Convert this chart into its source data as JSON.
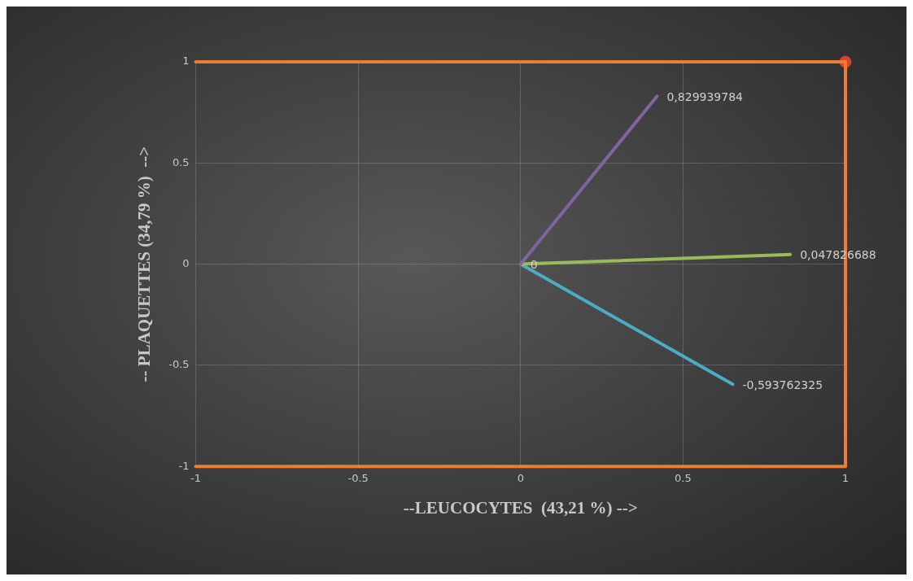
{
  "chart_data": {
    "type": "line",
    "xlabel": "--LEUCOCYTES  (43,21 %) -->",
    "ylabel": "-- PLAQUETTES (34,79 %)  -->",
    "xlim": [
      -1,
      1
    ],
    "ylim": [
      -1,
      1
    ],
    "xticks": [
      -1,
      -0.5,
      0,
      0.5,
      1
    ],
    "yticks": [
      -1,
      -0.5,
      0,
      0.5,
      1
    ],
    "grid": true,
    "legend": false,
    "series": [
      {
        "color": "#ed7d31",
        "x": [
          -1,
          1,
          1,
          -1
        ],
        "values": [
          1,
          1,
          -1,
          -1
        ],
        "marker": "none"
      },
      {
        "color": "#8064a2",
        "x": [
          0,
          0.42
        ],
        "values": [
          0,
          0.829939784
        ],
        "marker": "none",
        "value_labels": [
          null,
          "0,829939784"
        ]
      },
      {
        "color": "#9bbb59",
        "x": [
          0,
          0.83
        ],
        "values": [
          0,
          0.047826688
        ],
        "marker": "none",
        "value_labels": [
          "0",
          "0,047826688"
        ]
      },
      {
        "color": "#4bacc6",
        "x": [
          0,
          0.653
        ],
        "values": [
          0,
          -0.593762325
        ],
        "marker": "none",
        "value_labels": [
          null,
          "-0,593762325"
        ]
      },
      {
        "type": "scatter",
        "color": "#e0402a",
        "x": [
          1
        ],
        "values": [
          1
        ],
        "marker": "circle"
      }
    ]
  }
}
